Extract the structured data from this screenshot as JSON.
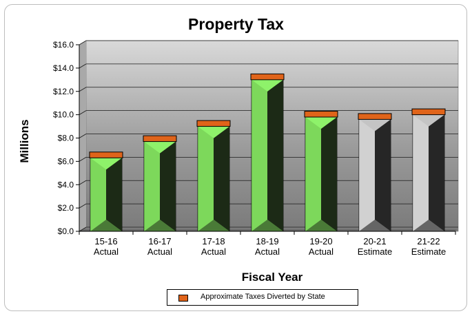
{
  "chart_data": {
    "type": "bar",
    "title": "Property Tax",
    "xlabel": "Fiscal Year",
    "ylabel": "Millions",
    "ylim": [
      0,
      16
    ],
    "ytick_step": 2,
    "ytick_labels": [
      "$0.0",
      "$2.0",
      "$4.0",
      "$6.0",
      "$8.0",
      "$10.0",
      "$12.0",
      "$14.0",
      "$16.0"
    ],
    "categories": [
      [
        "15-16",
        "Actual"
      ],
      [
        "16-17",
        "Actual"
      ],
      [
        "17-18",
        "Actual"
      ],
      [
        "18-19",
        "Actual"
      ],
      [
        "19-20",
        "Actual"
      ],
      [
        "20-21",
        "Estimate"
      ],
      [
        "21-22",
        "Estimate"
      ]
    ],
    "series": [
      {
        "values": [
          6.3,
          7.7,
          9.0,
          13.0,
          9.8,
          9.6,
          10.0
        ]
      },
      {
        "name": "Approximate Taxes Diverted by State",
        "values": [
          0.5,
          0.5,
          0.5,
          0.5,
          0.5,
          0.5,
          0.5
        ]
      }
    ],
    "bar_kind": [
      "actual",
      "actual",
      "actual",
      "actual",
      "actual",
      "estimate",
      "estimate"
    ],
    "grid": true,
    "legend_position": "bottom",
    "colors": {
      "actual_light": "#8ef26a",
      "actual_dark": "#1c2a16",
      "estimate_light": "#c4c4c4",
      "estimate_dark": "#262626",
      "diverted": "#e0641a",
      "plot_bg": "#8f8f8f"
    }
  }
}
